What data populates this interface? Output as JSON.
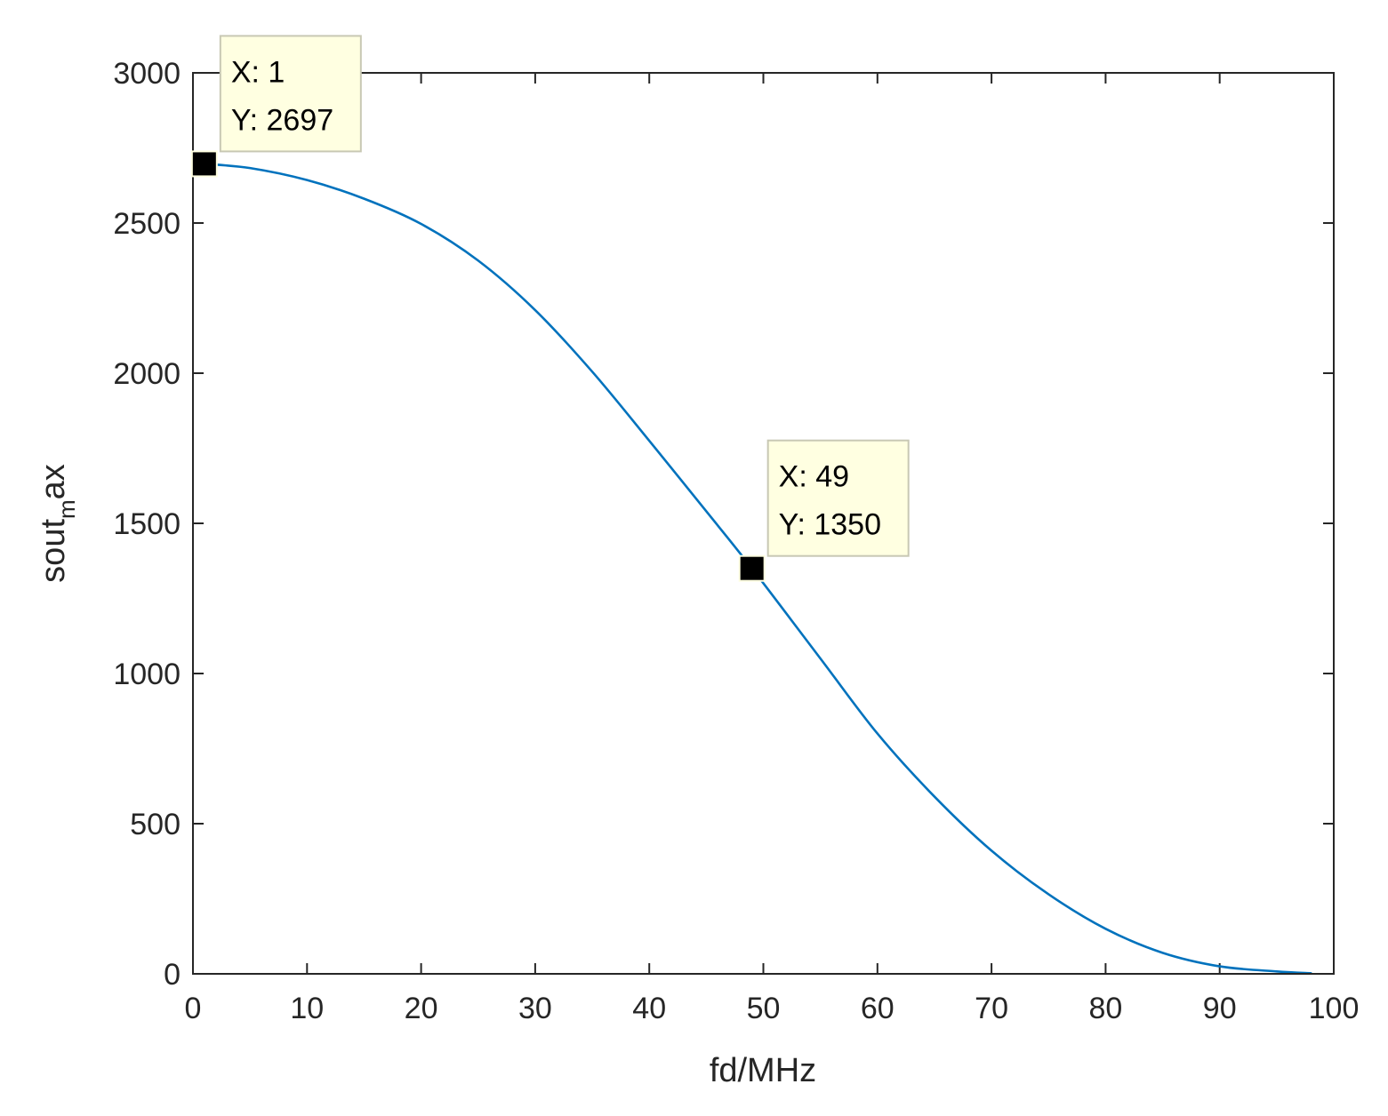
{
  "chart_data": {
    "type": "line",
    "title": "",
    "xlabel": "fd/MHz",
    "ylabel": {
      "base": "sout",
      "subscript": "m",
      "tail": "ax"
    },
    "xlim": [
      0,
      100
    ],
    "ylim": [
      0,
      3000
    ],
    "xticks": [
      0,
      10,
      20,
      30,
      40,
      50,
      60,
      70,
      80,
      90,
      100
    ],
    "yticks": [
      0,
      500,
      1000,
      1500,
      2000,
      2500,
      3000
    ],
    "grid": false,
    "legend": "none",
    "series": [
      {
        "color": "#0072BD",
        "x": [
          1,
          5,
          10,
          15,
          20,
          25,
          30,
          35,
          40,
          45,
          49,
          55,
          60,
          65,
          70,
          75,
          80,
          85,
          90,
          95,
          98
        ],
        "y": [
          2697,
          2683,
          2643,
          2581,
          2497,
          2375,
          2210,
          2005,
          1775,
          1540,
          1350,
          1050,
          800,
          590,
          410,
          265,
          150,
          70,
          25,
          8,
          2
        ]
      }
    ],
    "annotations": [
      {
        "x": 1,
        "y": 2697,
        "x_text": "X: 1",
        "y_text": "Y: 2697"
      },
      {
        "x": 49,
        "y": 1350,
        "x_text": "X: 49",
        "y_text": "Y: 1350"
      }
    ]
  },
  "colors": {
    "line": "#0072BD",
    "axes": "#262626",
    "datatip_background": "#FFFFE1",
    "datatip_border": "#C8C8B4",
    "marker": "#000000"
  }
}
